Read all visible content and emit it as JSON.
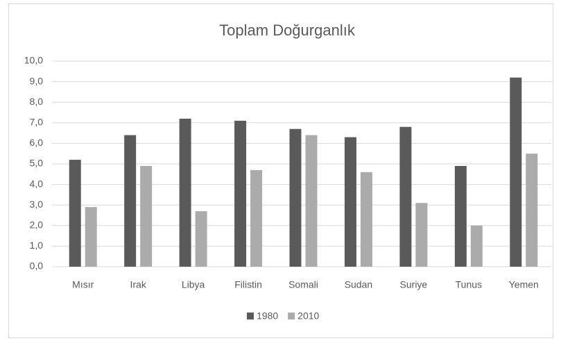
{
  "chart_data": {
    "type": "bar",
    "title": "Toplam Doğurganlık",
    "categories": [
      "Mısır",
      "Irak",
      "Libya",
      "Filistin",
      "Somali",
      "Sudan",
      "Suriye",
      "Tunus",
      "Yemen"
    ],
    "series": [
      {
        "name": "1980",
        "color": "#5a5a5a",
        "values": [
          5.2,
          6.4,
          7.2,
          7.1,
          6.7,
          6.3,
          6.8,
          4.9,
          9.2
        ]
      },
      {
        "name": "2010",
        "color": "#ababab",
        "values": [
          2.9,
          4.9,
          2.7,
          4.7,
          6.4,
          4.6,
          3.1,
          2.0,
          5.5
        ]
      }
    ],
    "ylim": [
      0,
      10
    ],
    "yticks": [
      {
        "value": 0,
        "label": "0,0"
      },
      {
        "value": 1,
        "label": "1,0"
      },
      {
        "value": 2,
        "label": "2,0"
      },
      {
        "value": 3,
        "label": "3,0"
      },
      {
        "value": 4,
        "label": "4,0"
      },
      {
        "value": 5,
        "label": "5,0"
      },
      {
        "value": 6,
        "label": "6,0"
      },
      {
        "value": 7,
        "label": "7,0"
      },
      {
        "value": 8,
        "label": "8,0"
      },
      {
        "value": 9,
        "label": "9,0"
      },
      {
        "value": 10,
        "label": "10,0"
      }
    ],
    "grid": true,
    "legend": "bottom"
  }
}
